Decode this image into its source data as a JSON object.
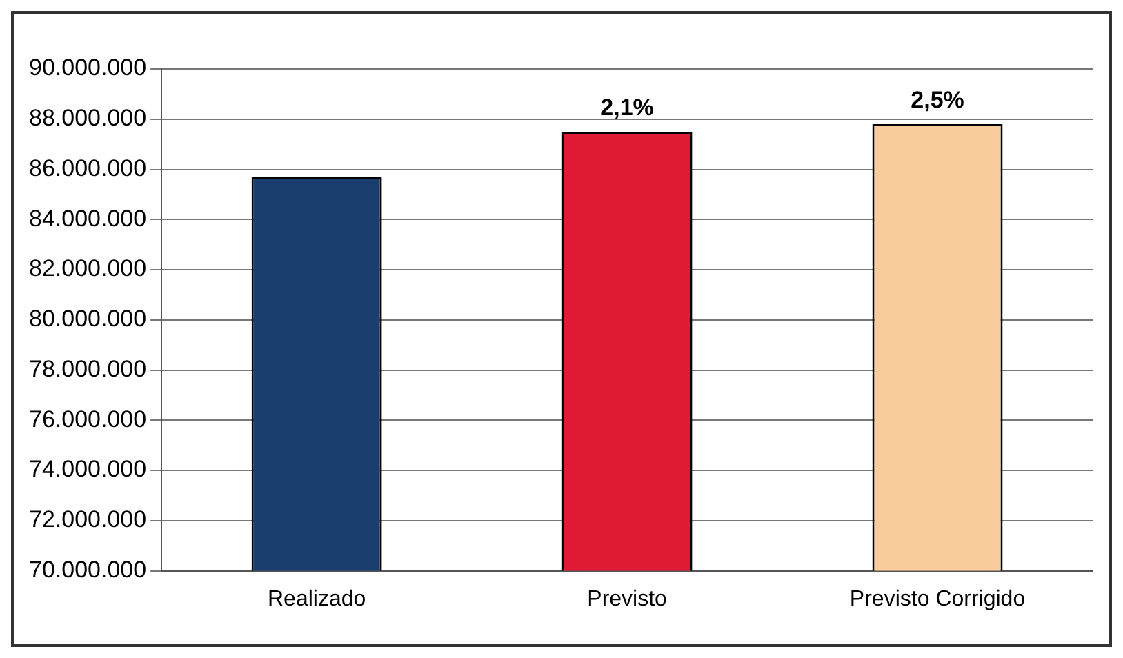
{
  "chart_data": {
    "type": "bar",
    "categories": [
      "Realizado",
      "Previsto",
      "Previsto Corrigido"
    ],
    "values": [
      85700000,
      87500000,
      87800000
    ],
    "colors": [
      "#1a3f6e",
      "#e01a35",
      "#f8cc9c"
    ],
    "annotations": [
      {
        "text": "2,1%",
        "x": "Previsto",
        "y": 87500000
      },
      {
        "text": "2,5%",
        "x": "Previsto Corrigido",
        "y": 87800000
      }
    ],
    "ylim": [
      70000000,
      90000000
    ],
    "yticks": [
      {
        "value": 70000000,
        "label": "70.000.000"
      },
      {
        "value": 72000000,
        "label": "72.000.000"
      },
      {
        "value": 74000000,
        "label": "74.000.000"
      },
      {
        "value": 76000000,
        "label": "76.000.000"
      },
      {
        "value": 78000000,
        "label": "78.000.000"
      },
      {
        "value": 80000000,
        "label": "80.000.000"
      },
      {
        "value": 82000000,
        "label": "82.000.000"
      },
      {
        "value": 84000000,
        "label": "84.000.000"
      },
      {
        "value": 86000000,
        "label": "86.000.000"
      },
      {
        "value": 88000000,
        "label": "88.000.000"
      },
      {
        "value": 90000000,
        "label": "90.000.000"
      }
    ],
    "grid": "y",
    "legend": false
  }
}
